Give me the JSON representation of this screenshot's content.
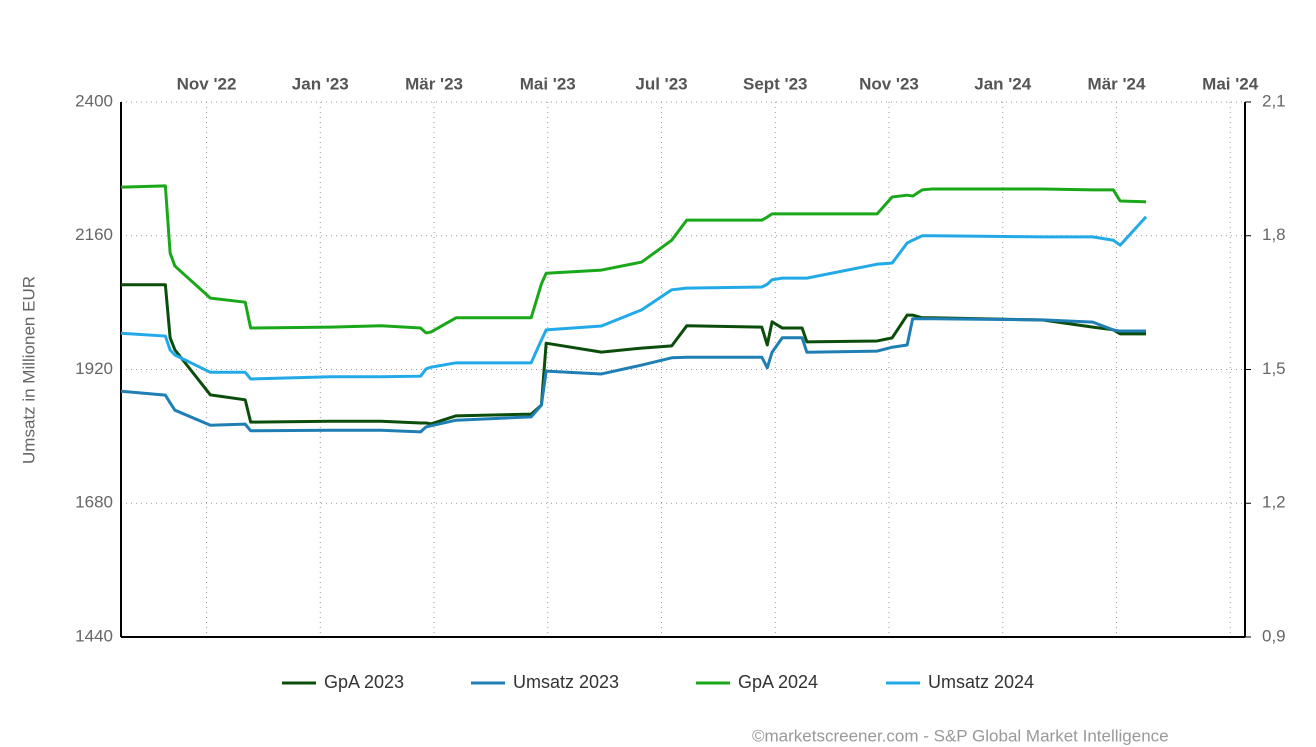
{
  "chart_data": {
    "type": "line",
    "y_label": "Umsatz in Millionen EUR",
    "source": "©marketscreener.com - S&P Global Market Intelligence",
    "xlim": [
      2022.708,
      2024.355
    ],
    "xticks": [
      {
        "value": 2022.8333,
        "label": "Nov '22"
      },
      {
        "value": 2023.0,
        "label": "Jan '23"
      },
      {
        "value": 2023.1667,
        "label": "Mär '23"
      },
      {
        "value": 2023.3333,
        "label": "Mai '23"
      },
      {
        "value": 2023.5,
        "label": "Jul '23"
      },
      {
        "value": 2023.6667,
        "label": "Sept '23"
      },
      {
        "value": 2023.8333,
        "label": "Nov '23"
      },
      {
        "value": 2024.0,
        "label": "Jan '24"
      },
      {
        "value": 2024.1667,
        "label": "Mär '24"
      },
      {
        "value": 2024.3333,
        "label": "Mai '24"
      }
    ],
    "ylim": [
      1440,
      2400
    ],
    "yticks": [
      1440,
      1680,
      1920,
      2160,
      2400
    ],
    "y2lim": [
      0.9,
      2.1
    ],
    "y2ticks": [
      {
        "value": 0.9,
        "label": "0,9"
      },
      {
        "value": 1.2,
        "label": "1,2"
      },
      {
        "value": 1.5,
        "label": "1,5"
      },
      {
        "value": 1.8,
        "label": "1,8"
      },
      {
        "value": 2.1,
        "label": "2,1"
      }
    ],
    "grid": true,
    "legend": "bottom",
    "x": [
      2022.708,
      2022.773,
      2022.78,
      2022.787,
      2022.839,
      2022.89,
      2022.898,
      2023.015,
      2023.089,
      2023.147,
      2023.155,
      2023.162,
      2023.199,
      2023.309,
      2023.324,
      2023.331,
      2023.412,
      2023.471,
      2023.515,
      2023.537,
      2023.647,
      2023.655,
      2023.662,
      2023.677,
      2023.706,
      2023.713,
      2023.816,
      2023.838,
      2023.86,
      2023.868,
      2023.882,
      2023.897,
      2024.059,
      2024.132,
      2024.162,
      2024.172,
      2024.21
    ],
    "series": [
      {
        "name": "GpA 2023",
        "color": "#0b4d0b",
        "axis": "y2",
        "values": [
          1.69,
          1.69,
          1.571,
          1.544,
          1.443,
          1.432,
          1.382,
          1.384,
          1.384,
          1.38,
          1.38,
          1.378,
          1.396,
          1.4,
          1.42,
          1.559,
          1.539,
          1.548,
          1.553,
          1.598,
          1.595,
          1.555,
          1.607,
          1.593,
          1.593,
          1.562,
          1.564,
          1.571,
          1.622,
          1.622,
          1.616,
          1.616,
          1.611,
          1.595,
          1.589,
          1.58,
          1.58
        ]
      },
      {
        "name": "Umsatz 2023",
        "color": "#1f7fb4",
        "values": [
          1881,
          1874,
          1860,
          1847,
          1820,
          1822,
          1810,
          1811,
          1811,
          1808,
          1817,
          1819,
          1829,
          1835,
          1856,
          1917,
          1912,
          1928,
          1941,
          1942,
          1942,
          1923,
          1951,
          1977,
          1977,
          1951,
          1953,
          1960,
          1964,
          2011,
          2011,
          2011,
          2009,
          2005,
          1991,
          1989,
          1989
        ]
      },
      {
        "name": "GpA 2024",
        "color": "#1aa81a",
        "axis": "y2",
        "values": [
          1.909,
          1.912,
          1.761,
          1.732,
          1.66,
          1.651,
          1.593,
          1.595,
          1.598,
          1.593,
          1.582,
          1.584,
          1.616,
          1.616,
          1.692,
          1.716,
          1.723,
          1.741,
          1.79,
          1.835,
          1.835,
          1.842,
          1.849,
          1.849,
          1.849,
          1.849,
          1.849,
          1.887,
          1.891,
          1.889,
          1.903,
          1.905,
          1.905,
          1.903,
          1.903,
          1.878,
          1.876
        ]
      },
      {
        "name": "Umsatz 2024",
        "color": "#22aae8",
        "values": [
          1985,
          1980,
          1955,
          1946,
          1915,
          1915,
          1903,
          1907,
          1907,
          1908,
          1921,
          1924,
          1932,
          1932,
          1973,
          1991,
          1998,
          2027,
          2063,
          2066,
          2068,
          2073,
          2081,
          2084,
          2084,
          2084,
          2109,
          2111,
          2147,
          2152,
          2160,
          2160,
          2158,
          2158,
          2152,
          2143,
          2194
        ]
      }
    ]
  }
}
